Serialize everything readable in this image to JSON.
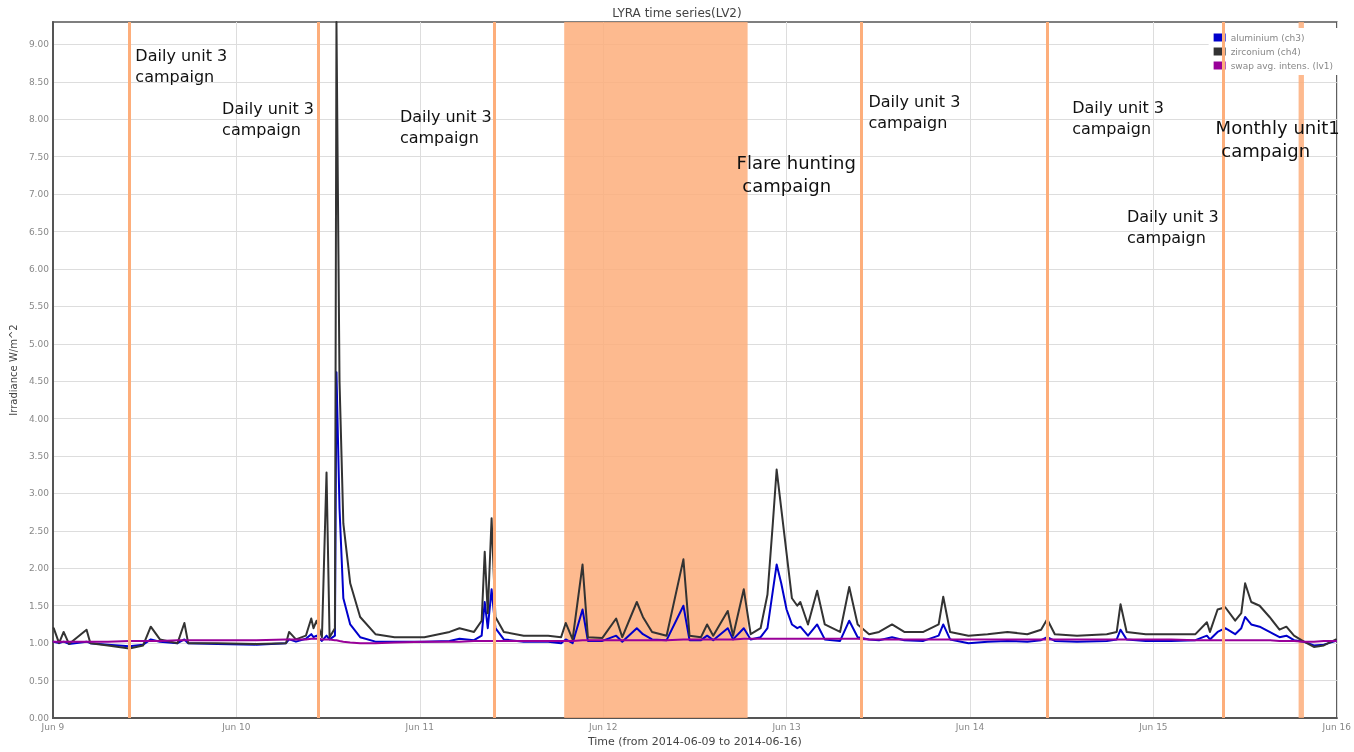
{
  "chart_data": {
    "type": "line",
    "title": "LYRA time series(LV2)",
    "xlabel": "Time (from 2014-06-09 to 2014-06-16)",
    "ylabel": "Irradiance W/m^2",
    "x": [
      "2014-06-09T00:06",
      "2014-06-09T00:48",
      "2014-06-09T01:24",
      "2014-06-09T02:06",
      "2014-06-09T04:24",
      "2014-06-09T04:54",
      "2014-06-09T07:12",
      "2014-06-09T10:00",
      "2014-06-09T11:48",
      "2014-06-09T12:48",
      "2014-06-09T14:00",
      "2014-06-09T16:18",
      "2014-06-09T17:12",
      "2014-06-09T17:42",
      "2014-06-09T21:30",
      "2014-06-10T02:36",
      "2014-06-10T06:30",
      "2014-06-10T06:54",
      "2014-06-10T07:48",
      "2014-06-10T09:06",
      "2014-06-10T09:48",
      "2014-06-10T10:06",
      "2014-06-10T10:30",
      "2014-06-10T11:12",
      "2014-06-10T11:48",
      "2014-06-10T12:12",
      "2014-06-10T12:54",
      "2014-06-10T13:06",
      "2014-06-10T13:30",
      "2014-06-10T14:00",
      "2014-06-10T14:54",
      "2014-06-10T16:12",
      "2014-06-10T18:12",
      "2014-06-10T20:42",
      "2014-06-11T00:36",
      "2014-06-11T03:54",
      "2014-06-11T05:12",
      "2014-06-11T07:06",
      "2014-06-11T08:06",
      "2014-06-11T08:30",
      "2014-06-11T08:54",
      "2014-06-11T09:24",
      "2014-06-11T09:54",
      "2014-06-11T11:00",
      "2014-06-11T13:36",
      "2014-06-11T16:48",
      "2014-06-11T18:30",
      "2014-06-11T19:06",
      "2014-06-11T20:00",
      "2014-06-11T21:18",
      "2014-06-11T22:00",
      "2014-06-11T23:54",
      "2014-06-12T01:42",
      "2014-06-12T02:30",
      "2014-06-12T04:24",
      "2014-06-12T05:12",
      "2014-06-12T06:24",
      "2014-06-12T08:18",
      "2014-06-12T10:30",
      "2014-06-12T11:18",
      "2014-06-12T12:48",
      "2014-06-12T13:36",
      "2014-06-12T14:24",
      "2014-06-12T16:18",
      "2014-06-12T17:00",
      "2014-06-12T18:24",
      "2014-06-12T19:18",
      "2014-06-12T20:36",
      "2014-06-12T21:30",
      "2014-06-12T22:12",
      "2014-06-12T22:42",
      "2014-06-12T23:18",
      "2014-06-13T00:00",
      "2014-06-13T00:42",
      "2014-06-13T01:24",
      "2014-06-13T01:48",
      "2014-06-13T02:48",
      "2014-06-13T04:00",
      "2014-06-13T05:00",
      "2014-06-13T07:00",
      "2014-06-13T08:12",
      "2014-06-13T09:18",
      "2014-06-13T10:48",
      "2014-06-13T12:06",
      "2014-06-13T13:48",
      "2014-06-13T15:24",
      "2014-06-13T17:54",
      "2014-06-13T19:54",
      "2014-06-13T20:30",
      "2014-06-13T21:24",
      "2014-06-13T23:48",
      "2014-06-14T02:18",
      "2014-06-14T04:54",
      "2014-06-14T07:30",
      "2014-06-14T09:18",
      "2014-06-14T10:06",
      "2014-06-14T11:06",
      "2014-06-14T14:00",
      "2014-06-14T17:54",
      "2014-06-14T19:12",
      "2014-06-14T19:42",
      "2014-06-14T20:30",
      "2014-06-14T23:00",
      "2014-06-15T02:18",
      "2014-06-15T05:30",
      "2014-06-15T07:00",
      "2014-06-15T07:24",
      "2014-06-15T08:24",
      "2014-06-15T09:24",
      "2014-06-15T10:42",
      "2014-06-15T11:30",
      "2014-06-15T12:00",
      "2014-06-15T12:48",
      "2014-06-15T13:54",
      "2014-06-15T15:12",
      "2014-06-15T16:30",
      "2014-06-15T17:24",
      "2014-06-15T18:24",
      "2014-06-15T19:42",
      "2014-06-15T21:00",
      "2014-06-15T22:18",
      "2014-06-15T23:54"
    ],
    "series": [
      {
        "name": "aluminium (ch3)",
        "color": "#0000cc",
        "values": [
          1.02,
          1.0,
          1.02,
          0.99,
          1.02,
          1.0,
          0.98,
          0.96,
          0.98,
          1.05,
          1.02,
          1.0,
          1.05,
          1.0,
          0.99,
          0.98,
          1.0,
          1.05,
          1.02,
          1.06,
          1.12,
          1.08,
          1.1,
          1.03,
          1.1,
          1.05,
          1.1,
          4.62,
          2.8,
          1.6,
          1.25,
          1.08,
          1.02,
          1.02,
          1.02,
          1.03,
          1.06,
          1.04,
          1.1,
          1.55,
          1.2,
          1.72,
          1.2,
          1.05,
          1.02,
          1.02,
          1.0,
          1.05,
          1.0,
          1.45,
          1.03,
          1.03,
          1.1,
          1.02,
          1.2,
          1.12,
          1.05,
          1.04,
          1.5,
          1.04,
          1.04,
          1.1,
          1.04,
          1.2,
          1.05,
          1.2,
          1.05,
          1.08,
          1.2,
          1.7,
          2.05,
          1.8,
          1.45,
          1.25,
          1.2,
          1.22,
          1.1,
          1.25,
          1.05,
          1.03,
          1.3,
          1.08,
          1.05,
          1.04,
          1.08,
          1.04,
          1.03,
          1.1,
          1.25,
          1.05,
          1.0,
          1.02,
          1.03,
          1.02,
          1.04,
          1.08,
          1.03,
          1.02,
          1.03,
          1.05,
          1.18,
          1.05,
          1.03,
          1.03,
          1.04,
          1.1,
          1.05,
          1.15,
          1.2,
          1.12,
          1.2,
          1.35,
          1.25,
          1.22,
          1.15,
          1.08,
          1.1,
          1.04,
          1.02,
          0.97,
          0.98,
          1.03
        ]
      },
      {
        "name": "zirconium (ch4)",
        "color": "#333333",
        "values": [
          1.2,
          1.0,
          1.15,
          0.99,
          1.18,
          1.0,
          0.97,
          0.93,
          0.97,
          1.22,
          1.05,
          1.0,
          1.27,
          1.0,
          1.0,
          0.99,
          1.0,
          1.15,
          1.05,
          1.1,
          1.33,
          1.2,
          1.3,
          1.08,
          3.28,
          1.08,
          1.2,
          9.3,
          4.5,
          2.6,
          1.8,
          1.35,
          1.12,
          1.08,
          1.08,
          1.15,
          1.2,
          1.15,
          1.3,
          2.22,
          1.4,
          2.67,
          1.35,
          1.15,
          1.1,
          1.1,
          1.08,
          1.27,
          1.05,
          2.05,
          1.08,
          1.07,
          1.33,
          1.08,
          1.55,
          1.35,
          1.15,
          1.1,
          2.12,
          1.1,
          1.08,
          1.25,
          1.1,
          1.43,
          1.1,
          1.72,
          1.12,
          1.2,
          1.65,
          2.6,
          3.32,
          2.8,
          2.2,
          1.6,
          1.5,
          1.55,
          1.25,
          1.7,
          1.25,
          1.15,
          1.75,
          1.25,
          1.12,
          1.15,
          1.25,
          1.15,
          1.15,
          1.25,
          1.62,
          1.15,
          1.1,
          1.12,
          1.15,
          1.12,
          1.18,
          1.32,
          1.12,
          1.1,
          1.12,
          1.15,
          1.52,
          1.15,
          1.12,
          1.12,
          1.12,
          1.28,
          1.15,
          1.45,
          1.48,
          1.3,
          1.4,
          1.8,
          1.55,
          1.5,
          1.35,
          1.18,
          1.22,
          1.1,
          1.02,
          0.95,
          0.97,
          1.05
        ]
      },
      {
        "name": "swap avg. intens. (lv1)",
        "color": "#990099",
        "values": [
          1.02,
          1.02,
          1.02,
          1.02,
          1.02,
          1.02,
          1.02,
          1.03,
          1.03,
          1.03,
          1.03,
          1.04,
          1.04,
          1.04,
          1.04,
          1.04,
          1.05,
          1.05,
          1.05,
          1.05,
          1.06,
          1.06,
          1.06,
          1.05,
          1.05,
          1.05,
          1.04,
          1.04,
          1.03,
          1.02,
          1.01,
          1.0,
          1.0,
          1.01,
          1.02,
          1.02,
          1.02,
          1.03,
          1.03,
          1.03,
          1.03,
          1.03,
          1.03,
          1.03,
          1.03,
          1.03,
          1.03,
          1.03,
          1.03,
          1.04,
          1.04,
          1.04,
          1.04,
          1.04,
          1.04,
          1.04,
          1.04,
          1.04,
          1.05,
          1.05,
          1.05,
          1.05,
          1.05,
          1.05,
          1.05,
          1.06,
          1.06,
          1.06,
          1.06,
          1.06,
          1.06,
          1.06,
          1.06,
          1.06,
          1.06,
          1.06,
          1.06,
          1.06,
          1.06,
          1.06,
          1.06,
          1.06,
          1.05,
          1.05,
          1.05,
          1.05,
          1.05,
          1.05,
          1.05,
          1.05,
          1.05,
          1.05,
          1.05,
          1.05,
          1.05,
          1.05,
          1.05,
          1.05,
          1.05,
          1.05,
          1.05,
          1.05,
          1.05,
          1.05,
          1.04,
          1.04,
          1.04,
          1.04,
          1.04,
          1.04,
          1.04,
          1.04,
          1.04,
          1.04,
          1.04,
          1.03,
          1.03,
          1.03,
          1.02,
          1.02,
          1.03,
          1.03
        ]
      }
    ],
    "xlim": [
      "2014-06-09",
      "2014-06-16"
    ],
    "xticks": [
      {
        "value": "2014-06-09",
        "label": "Jun 9"
      },
      {
        "value": "2014-06-10",
        "label": "Jun 10"
      },
      {
        "value": "2014-06-11",
        "label": "Jun 11"
      },
      {
        "value": "2014-06-12",
        "label": "Jun 12"
      },
      {
        "value": "2014-06-13",
        "label": "Jun 13"
      },
      {
        "value": "2014-06-14",
        "label": "Jun 14"
      },
      {
        "value": "2014-06-15",
        "label": "Jun 15"
      },
      {
        "value": "2014-06-16",
        "label": "Jun 16"
      }
    ],
    "ylim": [
      0,
      9.3
    ],
    "yticks": [
      {
        "value": 0,
        "label": "0.00"
      },
      {
        "value": 0.5,
        "label": "0.50"
      },
      {
        "value": 1,
        "label": "1.00"
      },
      {
        "value": 1.5,
        "label": "1.50"
      },
      {
        "value": 2,
        "label": "2.00"
      },
      {
        "value": 2.5,
        "label": "2.50"
      },
      {
        "value": 3,
        "label": "3.00"
      },
      {
        "value": 3.5,
        "label": "3.50"
      },
      {
        "value": 4,
        "label": "4.00"
      },
      {
        "value": 4.5,
        "label": "4.50"
      },
      {
        "value": 5,
        "label": "5.00"
      },
      {
        "value": 5.5,
        "label": "5.50"
      },
      {
        "value": 6,
        "label": "6.00"
      },
      {
        "value": 6.5,
        "label": "6.50"
      },
      {
        "value": 7,
        "label": "7.00"
      },
      {
        "value": 7.5,
        "label": "7.50"
      },
      {
        "value": 8,
        "label": "8.00"
      },
      {
        "value": 8.5,
        "label": "8.50"
      },
      {
        "value": 9,
        "label": "9.00"
      }
    ],
    "ref_lines": [
      {
        "axis": "x",
        "value": "2014-06-09T10:00",
        "label": "Daily unit 3 campaign",
        "color": "#fdae7b"
      },
      {
        "axis": "x",
        "value": "2014-06-10T10:42",
        "label": "Daily unit 3 campaign",
        "color": "#fdae7b"
      },
      {
        "axis": "x",
        "value": "2014-06-11T09:42",
        "label": "Daily unit 3 campaign",
        "color": "#fdae7b"
      },
      {
        "axis": "x",
        "value": "2014-06-13T09:48",
        "label": "Daily unit 3 campaign",
        "color": "#fdae7b"
      },
      {
        "axis": "x",
        "value": "2014-06-14T10:06",
        "label": "Daily unit 3 campaign",
        "color": "#fdae7b"
      },
      {
        "axis": "x",
        "value": "2014-06-15T09:06",
        "label": "Daily unit 3 campaign",
        "color": "#fdae7b"
      }
    ],
    "bands": [
      {
        "axis": "x",
        "from": "2014-06-11T18:54",
        "to": "2014-06-12T18:54",
        "label": "Flare hunting campaign",
        "color": "#fdae7b"
      },
      {
        "axis": "x",
        "from": "2014-06-15T19:00",
        "to": "2014-06-15T19:42",
        "label": "Monthly unit1 campaign",
        "color": "#fdae7b"
      }
    ],
    "grid": true,
    "legend": "top right",
    "marker": "none",
    "line_style": "solid"
  }
}
